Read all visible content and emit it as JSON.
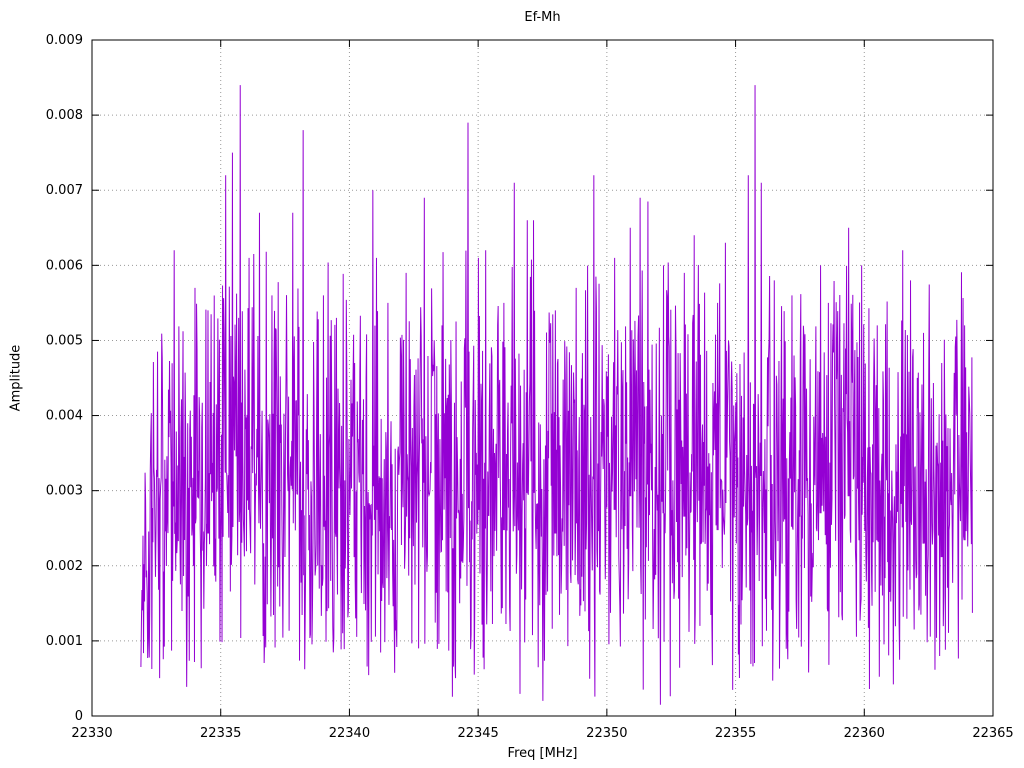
{
  "canvas": {
    "background": "#ffffff"
  },
  "chart_data": {
    "type": "line",
    "title": "Ef-Mh",
    "xlabel": "Freq [MHz]",
    "ylabel": "Amplitude",
    "xlim": [
      22330,
      22365
    ],
    "ylim": [
      0,
      0.009
    ],
    "xticks": [
      22330,
      22335,
      22340,
      22345,
      22350,
      22355,
      22360,
      22365
    ],
    "xtick_labels": [
      "22330",
      "22335",
      "22340",
      "22345",
      "22350",
      "22355",
      "22360",
      "22365"
    ],
    "yticks": [
      0,
      0.001,
      0.002,
      0.003,
      0.004,
      0.005,
      0.006,
      0.007,
      0.008,
      0.009
    ],
    "ytick_labels": [
      "0",
      "0.001",
      "0.002",
      "0.003",
      "0.004",
      "0.005",
      "0.006",
      "0.007",
      "0.008",
      "0.009"
    ],
    "grid": true,
    "grid_style": "dotted",
    "grid_color": "#9a9a9a",
    "border_color": "#000000",
    "legend": "none",
    "series": [
      {
        "name": "Ef-Mh",
        "color": "#9400d3",
        "style": "dense-noise-line",
        "x_start": 22331.9,
        "x_end": 22364.2,
        "n_points": 1600,
        "noise_seed": 1337,
        "noise_min": 0.0004,
        "noise_max": 0.006,
        "dip_prob": 0.03,
        "dip_scale": 0.22,
        "high_prob": 0.05,
        "start_taper_mhz": 0.6,
        "peaks": [
          {
            "x": 22333.2,
            "y": 0.0062
          },
          {
            "x": 22334.0,
            "y": 0.0057
          },
          {
            "x": 22334.5,
            "y": 0.0054
          },
          {
            "x": 22335.2,
            "y": 0.0072
          },
          {
            "x": 22335.45,
            "y": 0.0075
          },
          {
            "x": 22335.75,
            "y": 0.0084
          },
          {
            "x": 22336.1,
            "y": 0.0061
          },
          {
            "x": 22336.5,
            "y": 0.0067
          },
          {
            "x": 22337.0,
            "y": 0.0056
          },
          {
            "x": 22337.8,
            "y": 0.0067
          },
          {
            "x": 22338.2,
            "y": 0.0078
          },
          {
            "x": 22339.0,
            "y": 0.0056
          },
          {
            "x": 22339.5,
            "y": 0.0053
          },
          {
            "x": 22340.2,
            "y": 0.0047
          },
          {
            "x": 22340.9,
            "y": 0.007
          },
          {
            "x": 22341.05,
            "y": 0.0061
          },
          {
            "x": 22341.5,
            "y": 0.0055
          },
          {
            "x": 22342.2,
            "y": 0.0059
          },
          {
            "x": 22342.9,
            "y": 0.0069
          },
          {
            "x": 22343.6,
            "y": 0.0052
          },
          {
            "x": 22344.6,
            "y": 0.0079
          },
          {
            "x": 22345.0,
            "y": 0.0061
          },
          {
            "x": 22345.3,
            "y": 0.0062
          },
          {
            "x": 22346.0,
            "y": 0.0055
          },
          {
            "x": 22346.4,
            "y": 0.0071
          },
          {
            "x": 22346.9,
            "y": 0.0066
          },
          {
            "x": 22347.15,
            "y": 0.0066
          },
          {
            "x": 22348.0,
            "y": 0.0054
          },
          {
            "x": 22348.8,
            "y": 0.0057
          },
          {
            "x": 22349.5,
            "y": 0.0072
          },
          {
            "x": 22350.3,
            "y": 0.0061
          },
          {
            "x": 22350.9,
            "y": 0.0065
          },
          {
            "x": 22351.3,
            "y": 0.0069
          },
          {
            "x": 22351.6,
            "y": 0.00685
          },
          {
            "x": 22352.2,
            "y": 0.006
          },
          {
            "x": 22353.0,
            "y": 0.0059
          },
          {
            "x": 22353.4,
            "y": 0.0064
          },
          {
            "x": 22354.3,
            "y": 0.0055
          },
          {
            "x": 22354.6,
            "y": 0.0063
          },
          {
            "x": 22355.5,
            "y": 0.0072
          },
          {
            "x": 22355.75,
            "y": 0.0084
          },
          {
            "x": 22356.0,
            "y": 0.0071
          },
          {
            "x": 22356.5,
            "y": 0.0058
          },
          {
            "x": 22357.2,
            "y": 0.0056
          },
          {
            "x": 22358.3,
            "y": 0.006
          },
          {
            "x": 22358.6,
            "y": 0.0055
          },
          {
            "x": 22359.4,
            "y": 0.0065
          },
          {
            "x": 22359.9,
            "y": 0.006
          },
          {
            "x": 22360.5,
            "y": 0.0052
          },
          {
            "x": 22361.5,
            "y": 0.0062
          },
          {
            "x": 22361.8,
            "y": 0.0058
          },
          {
            "x": 22362.3,
            "y": 0.0051
          },
          {
            "x": 22363.0,
            "y": 0.0047
          },
          {
            "x": 22363.9,
            "y": 0.0052
          }
        ]
      }
    ]
  }
}
